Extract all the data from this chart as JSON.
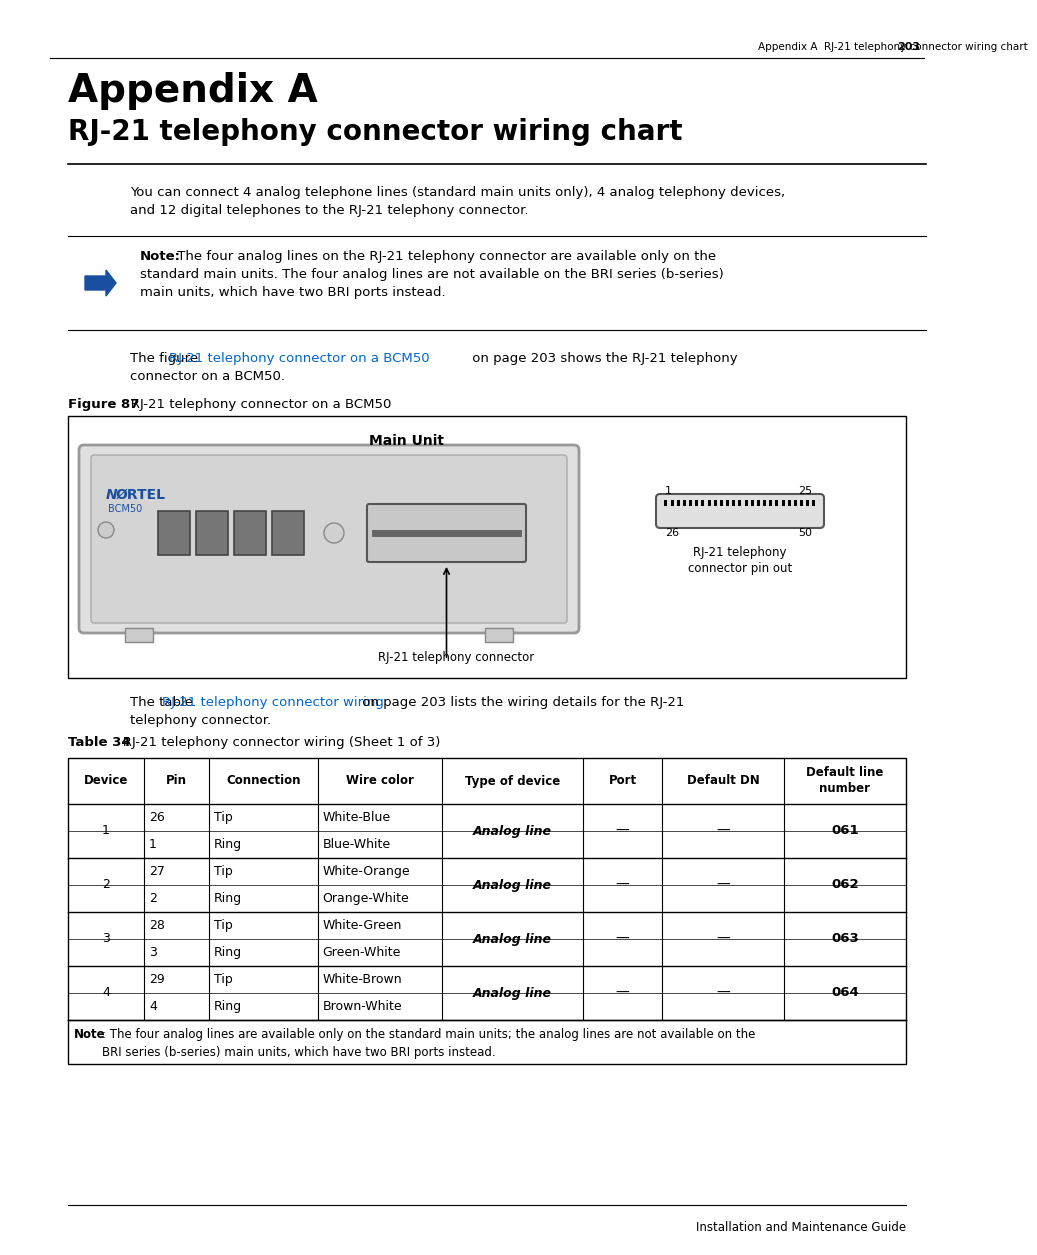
{
  "page_header": "Appendix A  RJ-21 telephony connector wiring chart",
  "page_number": "203",
  "title_line1": "Appendix A",
  "title_line2": "RJ-21 telephony connector wiring chart",
  "intro_text1": "You can connect 4 analog telephone lines (standard main units only), 4 analog telephony devices,",
  "intro_text2": "and 12 digital telephones to the RJ-21 telephony connector.",
  "note_bold": "Note:",
  "note_text": " The four analog lines on the RJ-21 telephony connector are available only on the",
  "note_text2": "standard main units. The four analog lines are not available on the BRI series (b-series)",
  "note_text3": "main units, which have two BRI ports instead.",
  "figure_ref_pre": "The figure ",
  "figure_ref_link": "RJ-21 telephony connector on a BCM50",
  "figure_ref_post1": " on page 203 shows the RJ-21 telephony",
  "figure_ref_post2": "connector on a BCM50.",
  "figure_label_bold": "Figure 87",
  "figure_caption": "   RJ-21 telephony connector on a BCM50",
  "main_unit_label": "Main Unit",
  "connector_label": "RJ-21 telephony connector",
  "pinout_label_1": "RJ-21 telephony",
  "pinout_label_2": "connector pin out",
  "table_ref_pre": "The table ",
  "table_ref_link": "RJ-21 telephony connector wiring",
  "table_ref_post1": " on page 203 lists the wiring details for the RJ-21",
  "table_ref_post2": "telephony connector.",
  "table_label_bold": "Table 34",
  "table_caption": "   RJ-21 telephony connector wiring (Sheet 1 of 3)",
  "table_headers": [
    "Device",
    "Pin",
    "Connection",
    "Wire color",
    "Type of device",
    "Port",
    "Default DN",
    "Default line\nnumber"
  ],
  "table_rows": [
    [
      "1",
      "26",
      "Tip",
      "White-Blue",
      "Analog line",
      "—",
      "—",
      "061"
    ],
    [
      "",
      "1",
      "Ring",
      "Blue-White",
      "",
      "",
      "",
      ""
    ],
    [
      "2",
      "27",
      "Tip",
      "White-Orange",
      "Analog line",
      "—",
      "—",
      "062"
    ],
    [
      "",
      "2",
      "Ring",
      "Orange-White",
      "",
      "",
      "",
      ""
    ],
    [
      "3",
      "28",
      "Tip",
      "White-Green",
      "Analog line",
      "—",
      "—",
      "063"
    ],
    [
      "",
      "3",
      "Ring",
      "Green-White",
      "",
      "",
      "",
      ""
    ],
    [
      "4",
      "29",
      "Tip",
      "White-Brown",
      "Analog line",
      "—",
      "—",
      "064"
    ],
    [
      "",
      "4",
      "Ring",
      "Brown-White",
      "",
      "",
      "",
      ""
    ]
  ],
  "table_note_bold": "Note",
  "table_note_rest": ": The four analog lines are available only on the standard main units; the analog lines are not available on the\nBRI series (b-series) main units, which have two BRI ports instead.",
  "footer_text": "Installation and Maintenance Guide",
  "link_color": "#0066cc",
  "bg_color": "#ffffff",
  "text_color": "#000000",
  "arrow_color": "#1a4fa0",
  "nortel_color": "#1a4fa0"
}
